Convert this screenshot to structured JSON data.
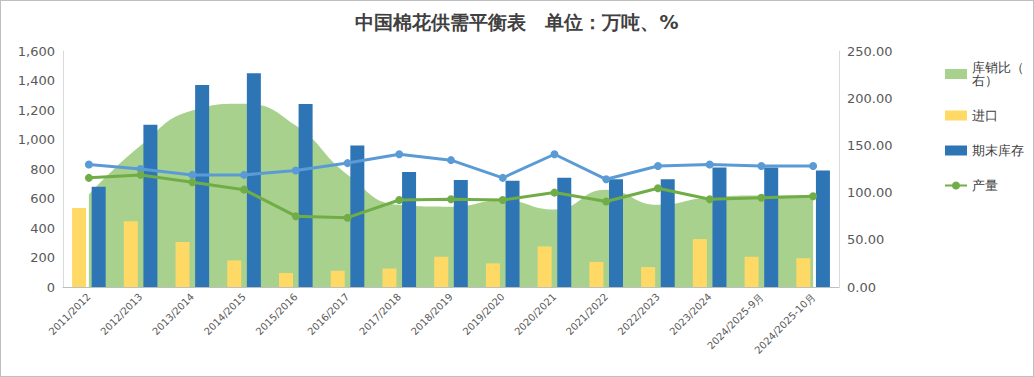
{
  "chart_data": {
    "type": "bar",
    "title": "中国棉花供需平衡表　单位：万吨、%",
    "categories": [
      "2011/2012",
      "2012/2013",
      "2013/2014",
      "2014/2015",
      "2015/2016",
      "2016/2017",
      "2017/2018",
      "2018/2019",
      "2019/2020",
      "2020/2021",
      "2021/2022",
      "2022/2023",
      "2023/2024",
      "2024/2025-9月",
      "2024/2025-10月"
    ],
    "series": [
      {
        "name": "库销比（右）",
        "type": "area",
        "axis": "y2",
        "color": "#a9d18e",
        "values": [
          98,
          150,
          187,
          194,
          171,
          119,
          87,
          85,
          92,
          82,
          103,
          87,
          95,
          97,
          97
        ]
      },
      {
        "name": "进口",
        "type": "bar",
        "color": "#ffd966",
        "values": [
          535,
          445,
          305,
          180,
          95,
          110,
          125,
          205,
          160,
          275,
          170,
          135,
          325,
          205,
          195
        ]
      },
      {
        "name": "期末库存",
        "type": "bar",
        "color": "#2e75b6",
        "values": [
          680,
          1100,
          1370,
          1450,
          1240,
          960,
          780,
          725,
          720,
          740,
          730,
          730,
          810,
          810,
          790
        ]
      },
      {
        "type": "line",
        "color": "#5b9bd5",
        "marker": "circle",
        "values": [
          830,
          800,
          760,
          760,
          790,
          840,
          900,
          860,
          740,
          900,
          730,
          820,
          830,
          820,
          820
        ]
      },
      {
        "name": "产量",
        "type": "line",
        "color": "#70ad47",
        "marker": "circle",
        "values": [
          740,
          760,
          710,
          660,
          480,
          470,
          590,
          595,
          590,
          640,
          580,
          670,
          595,
          605,
          615
        ]
      }
    ],
    "ylim": [
      0,
      1600
    ],
    "yticks": [
      0,
      200,
      400,
      600,
      800,
      {
        "value": 1000,
        "label": "1,000"
      },
      {
        "value": 1200,
        "label": "1,200"
      },
      {
        "value": 1400,
        "label": "1,400"
      },
      {
        "value": 1600,
        "label": "1,600"
      }
    ],
    "y2lim": [
      0,
      250
    ],
    "y2ticks": [
      {
        "value": 0,
        "label": "0.00"
      },
      {
        "value": 50,
        "label": "50.00"
      },
      {
        "value": 100,
        "label": "100.00"
      },
      {
        "value": 150,
        "label": "150.00"
      },
      {
        "value": 200,
        "label": "200.00"
      },
      {
        "value": 250,
        "label": "250.00"
      }
    ],
    "grid": false,
    "legend": "right"
  }
}
